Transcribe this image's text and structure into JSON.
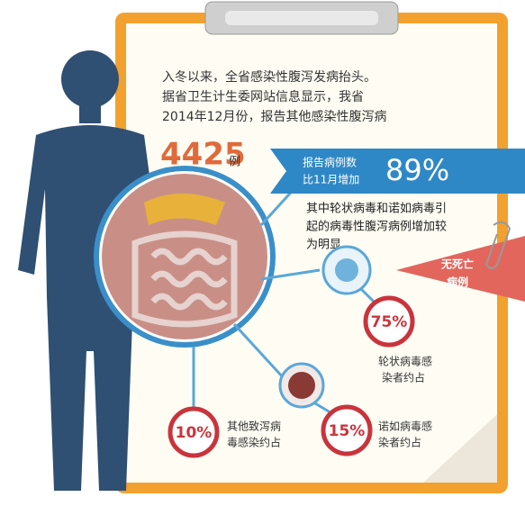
{
  "intro": [
    "入冬以来，全省感染性腹泻发病抬头。",
    "据省卫生计生委网站信息显示，我省",
    "2014年12月份，报告其他感染性腹泻病"
  ],
  "cases": {
    "number": "4425",
    "unit": "例"
  },
  "increase": {
    "label": [
      "报告病例数",
      "比11月增加"
    ],
    "percent": "89%"
  },
  "note": [
    "其中轮状病毒和诺如病毒引",
    "起的病毒性腹泻病例增加较",
    "为明显"
  ],
  "deaths": [
    "无死亡",
    "病例"
  ],
  "groups": [
    {
      "percent": "75%",
      "label": [
        "轮状病毒感",
        "染者约占"
      ]
    },
    {
      "percent": "15%",
      "label": [
        "诺如病毒感",
        "染者约占"
      ]
    },
    {
      "percent": "10%",
      "label": [
        "其他致泻病",
        "毒感染约占"
      ]
    }
  ]
}
